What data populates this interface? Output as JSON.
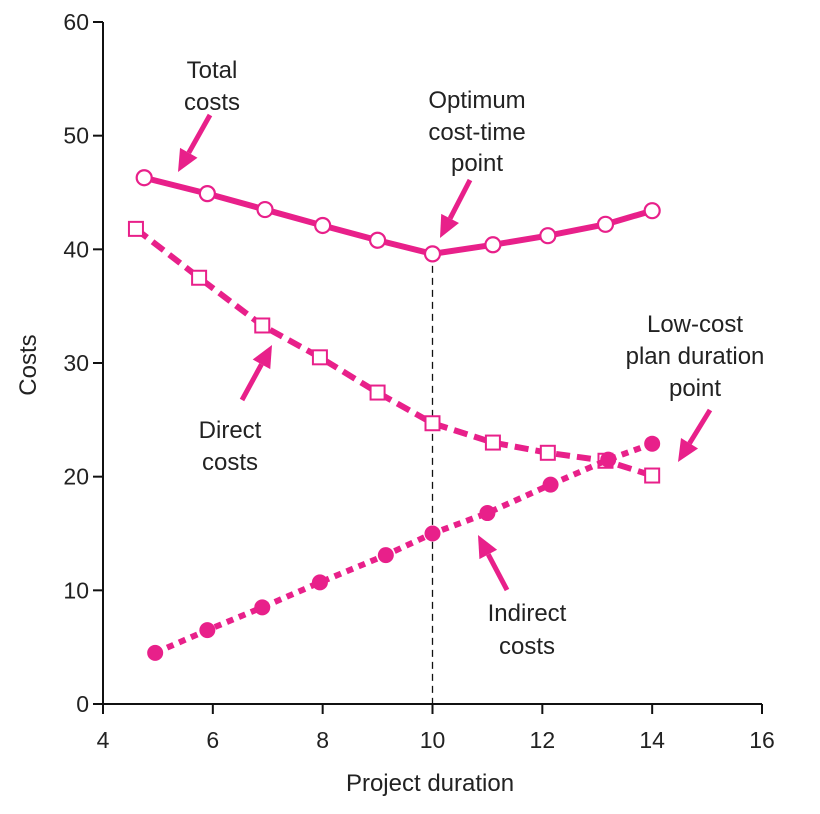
{
  "chart_data": {
    "type": "line",
    "title": "",
    "xlabel": "Project duration",
    "ylabel": "Costs",
    "xlim": [
      4,
      16
    ],
    "ylim": [
      0,
      60
    ],
    "xticks": [
      "4",
      "6",
      "8",
      "10",
      "12",
      "14",
      "16"
    ],
    "yticks": [
      "0",
      "10",
      "20",
      "30",
      "40",
      "50",
      "60"
    ],
    "grid": false,
    "color": "#e8208a",
    "series": [
      {
        "key": "total",
        "style": "solid",
        "marker": "open-circle",
        "x": [
          4.75,
          5.9,
          6.95,
          8.0,
          9.0,
          10.0,
          11.1,
          12.1,
          13.15,
          14.0
        ],
        "y": [
          46.3,
          44.9,
          43.5,
          42.1,
          40.8,
          39.6,
          40.4,
          41.2,
          42.2,
          43.4
        ]
      },
      {
        "key": "direct",
        "style": "dashed",
        "marker": "open-square",
        "x": [
          4.6,
          5.75,
          6.9,
          7.95,
          9.0,
          10.0,
          11.1,
          12.1,
          13.15,
          14.0
        ],
        "y": [
          41.8,
          37.5,
          33.3,
          30.5,
          27.4,
          24.7,
          23.0,
          22.1,
          21.4,
          20.1
        ]
      },
      {
        "key": "indirect",
        "style": "dotted",
        "marker": "filled-circle",
        "x": [
          4.95,
          5.9,
          6.9,
          7.95,
          9.15,
          10.0,
          11.0,
          12.15,
          13.2,
          14.0
        ],
        "y": [
          4.5,
          6.5,
          8.5,
          10.7,
          13.1,
          15.0,
          16.8,
          19.3,
          21.5,
          22.9
        ]
      }
    ],
    "optimum_x": 10,
    "annotations": [
      {
        "key": "total",
        "lines": [
          "Total",
          "costs"
        ]
      },
      {
        "key": "optimum",
        "lines": [
          "Optimum",
          "cost-time",
          "point"
        ]
      },
      {
        "key": "lowcost",
        "lines": [
          "Low-cost",
          "plan duration",
          "point"
        ]
      },
      {
        "key": "direct",
        "lines": [
          "Direct",
          "costs"
        ]
      },
      {
        "key": "indirect",
        "lines": [
          "Indirect",
          "costs"
        ]
      }
    ]
  }
}
